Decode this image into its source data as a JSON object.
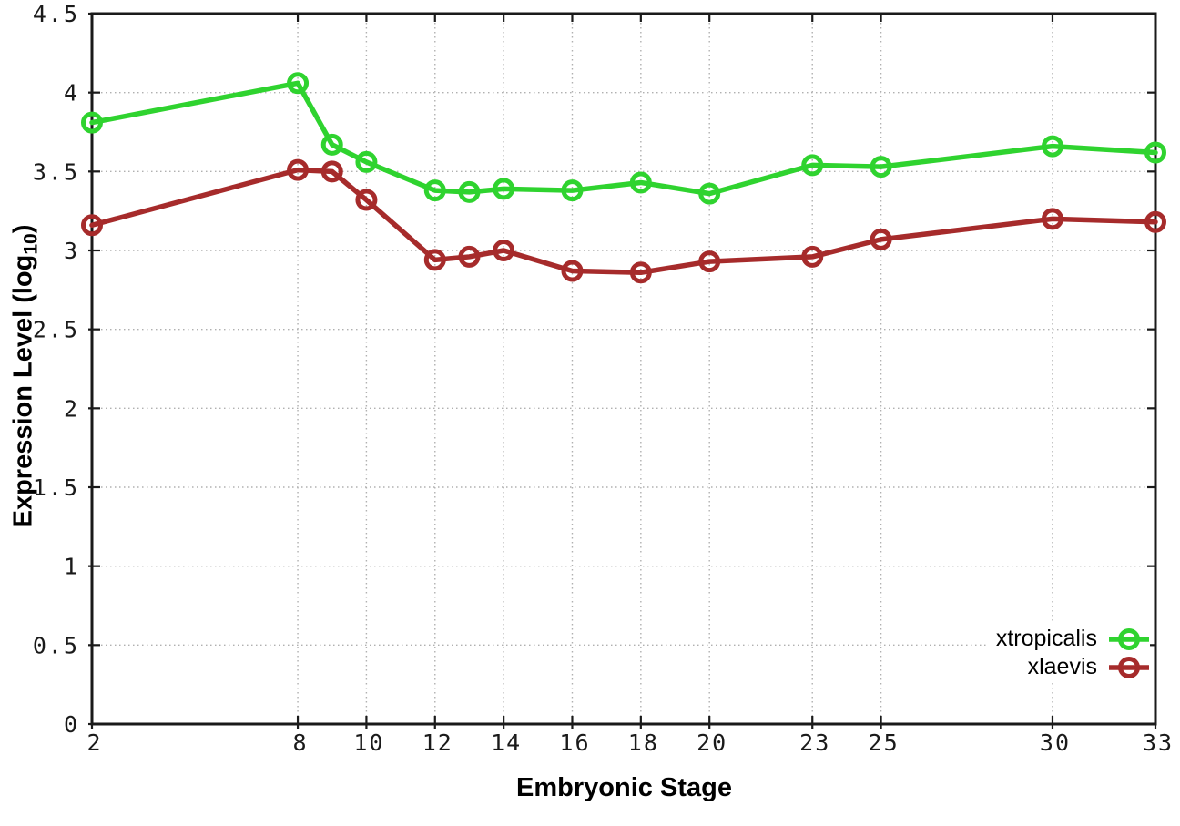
{
  "chart_data": {
    "type": "line",
    "title": "",
    "xlabel": "Embryonic Stage",
    "ylabel": "Expression Level (log10)",
    "ylabel_rich": {
      "pre": "Expression Level (log",
      "sub": "10",
      "post": ")"
    },
    "x": [
      2,
      8,
      9,
      10,
      12,
      13,
      14,
      16,
      18,
      20,
      23,
      25,
      30,
      33
    ],
    "series": [
      {
        "name": "xtropicalis",
        "color": "#2fd32f",
        "values": [
          3.81,
          4.06,
          3.67,
          3.56,
          3.38,
          3.37,
          3.39,
          3.38,
          3.43,
          3.36,
          3.54,
          3.53,
          3.66,
          3.62
        ]
      },
      {
        "name": "xlaevis",
        "color": "#a62b2b",
        "values": [
          3.16,
          3.51,
          3.5,
          3.32,
          2.94,
          2.96,
          3.0,
          2.87,
          2.86,
          2.93,
          2.96,
          3.07,
          3.2,
          3.18
        ]
      }
    ],
    "xlim": [
      2,
      33
    ],
    "ylim": [
      0,
      4.5
    ],
    "x_ticks": {
      "values": [
        2,
        8,
        10,
        12,
        14,
        16,
        18,
        20,
        23,
        25,
        30,
        33
      ],
      "labels": [
        "2",
        "8",
        "10",
        "12",
        "14",
        "16",
        "18",
        "20",
        "23",
        "25",
        "30",
        "33"
      ]
    },
    "y_ticks": {
      "values": [
        0,
        0.5,
        1,
        1.5,
        2,
        2.5,
        3,
        3.5,
        4,
        4.5
      ],
      "labels": [
        "0",
        "0.5",
        "1",
        "1.5",
        "2",
        "2.5",
        "3",
        "3.5",
        "4",
        "4.5"
      ]
    },
    "grid": true,
    "legend_position": "inside-bottom-right",
    "marker": "open-circle",
    "colors": {
      "background": "#ffffff",
      "axis_border": "#1a1a1a",
      "grid": "#b0b0b0",
      "tick_text": "#1a1a1a"
    }
  }
}
